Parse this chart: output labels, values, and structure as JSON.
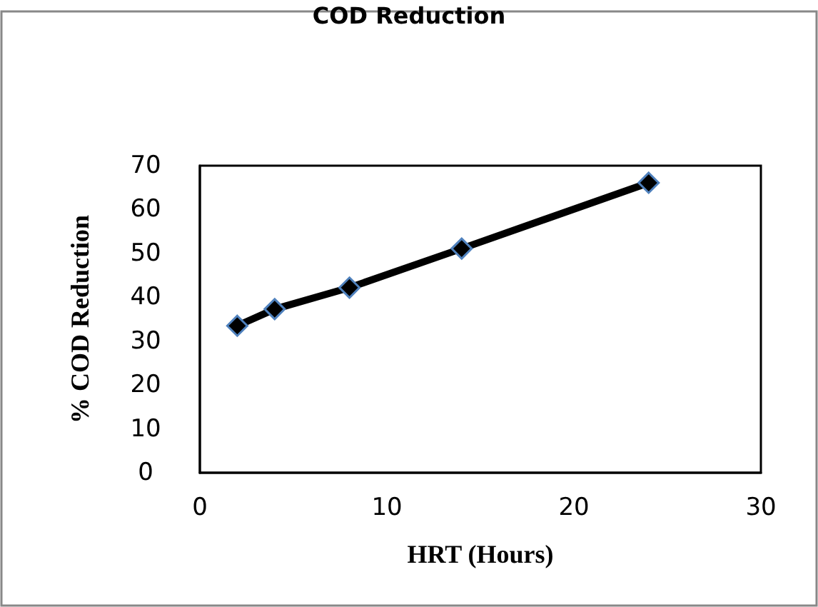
{
  "chart_data": {
    "type": "line",
    "title": "COD Reduction",
    "xlabel": "HRT (Hours)",
    "ylabel": "% COD Reduction",
    "x": [
      2,
      4,
      8,
      14,
      24
    ],
    "series": [
      {
        "color": "#000000",
        "values": [
          33.5,
          37.3,
          42.2,
          51.1,
          66.1
        ]
      }
    ],
    "xlim": [
      0,
      30
    ],
    "xticks": [
      0,
      10,
      20,
      30
    ],
    "ylim": [
      0,
      70
    ],
    "yticks": [
      0,
      10,
      20,
      30,
      40,
      50,
      60,
      70
    ],
    "grid": false,
    "marker": "diamond",
    "line_style": "solid"
  }
}
